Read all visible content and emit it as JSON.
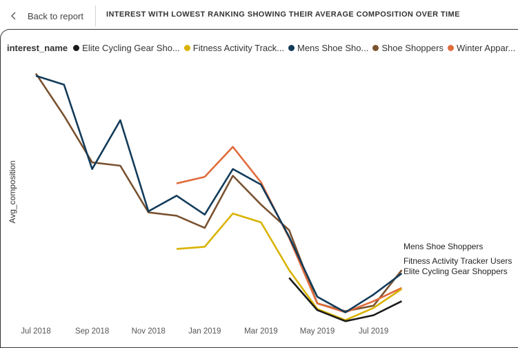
{
  "nav": {
    "back_label": "Back to report"
  },
  "header": {
    "title": "INTEREST WITH LOWEST RANKING SHOWING THEIR AVERAGE COMPOSITION OVER TIME"
  },
  "legend": {
    "title": "interest_name",
    "items": [
      {
        "label": "Elite Cycling Gear Sho...",
        "color": "#1a1a1a"
      },
      {
        "label": "Fitness Activity Track...",
        "color": "#d9b300"
      },
      {
        "label": "Mens Shoe Sho...",
        "color": "#123b5a"
      },
      {
        "label": "Shoe Shoppers",
        "color": "#7a5230"
      },
      {
        "label": "Winter Appar...",
        "color": "#e06c3c"
      }
    ]
  },
  "chart_data": {
    "type": "line",
    "xlabel": "",
    "ylabel": "Avg_composition",
    "x": [
      "2018-07",
      "2018-08",
      "2018-09",
      "2018-10",
      "2018-11",
      "2018-12",
      "2019-01",
      "2019-02",
      "2019-03",
      "2019-04",
      "2019-05",
      "2019-06",
      "2019-07",
      "2019-08"
    ],
    "x_tick_labels": [
      "Jul 2018",
      "Sep 2018",
      "Nov 2018",
      "Jan 2019",
      "Mar 2019",
      "May 2019",
      "Jul 2019"
    ],
    "series": [
      {
        "name": "Elite Cycling Gear Shoppers",
        "color": "#1a1a1a",
        "values": [
          null,
          null,
          null,
          null,
          null,
          null,
          null,
          null,
          null,
          2.1,
          0.65,
          0.15,
          0.42,
          1.05
        ],
        "end_label": "Elite Cycling Gear Shoppers"
      },
      {
        "name": "Fitness Activity Tracker Users",
        "color": "#d9b300",
        "values": [
          null,
          null,
          null,
          null,
          null,
          3.4,
          3.5,
          5.0,
          4.6,
          2.45,
          0.7,
          0.2,
          0.75,
          1.6
        ],
        "end_label": "Fitness Activity Tracker Users"
      },
      {
        "name": "Mens Shoe Shoppers",
        "color": "#123b5a",
        "values": [
          11.2,
          10.8,
          7.0,
          9.2,
          5.1,
          5.8,
          4.95,
          7.0,
          6.3,
          3.95,
          1.25,
          0.55,
          1.35,
          2.3
        ],
        "end_label": "Mens Shoe Shoppers"
      },
      {
        "name": "Shoe Shoppers",
        "color": "#7a5230",
        "values": [
          11.3,
          9.4,
          7.3,
          7.15,
          5.05,
          4.9,
          4.35,
          6.7,
          5.4,
          4.25,
          0.95,
          0.6,
          0.85,
          2.45
        ]
      },
      {
        "name": "Winter Apparel Shoppers",
        "color": "#e06c3c",
        "values": [
          null,
          null,
          null,
          null,
          null,
          6.35,
          6.65,
          8.0,
          6.4,
          3.9,
          0.95,
          0.55,
          1.05,
          1.65
        ]
      }
    ],
    "ylim": [
      0,
      12
    ],
    "y_ticks_shown": false,
    "grid": false,
    "legend_position": "top"
  }
}
